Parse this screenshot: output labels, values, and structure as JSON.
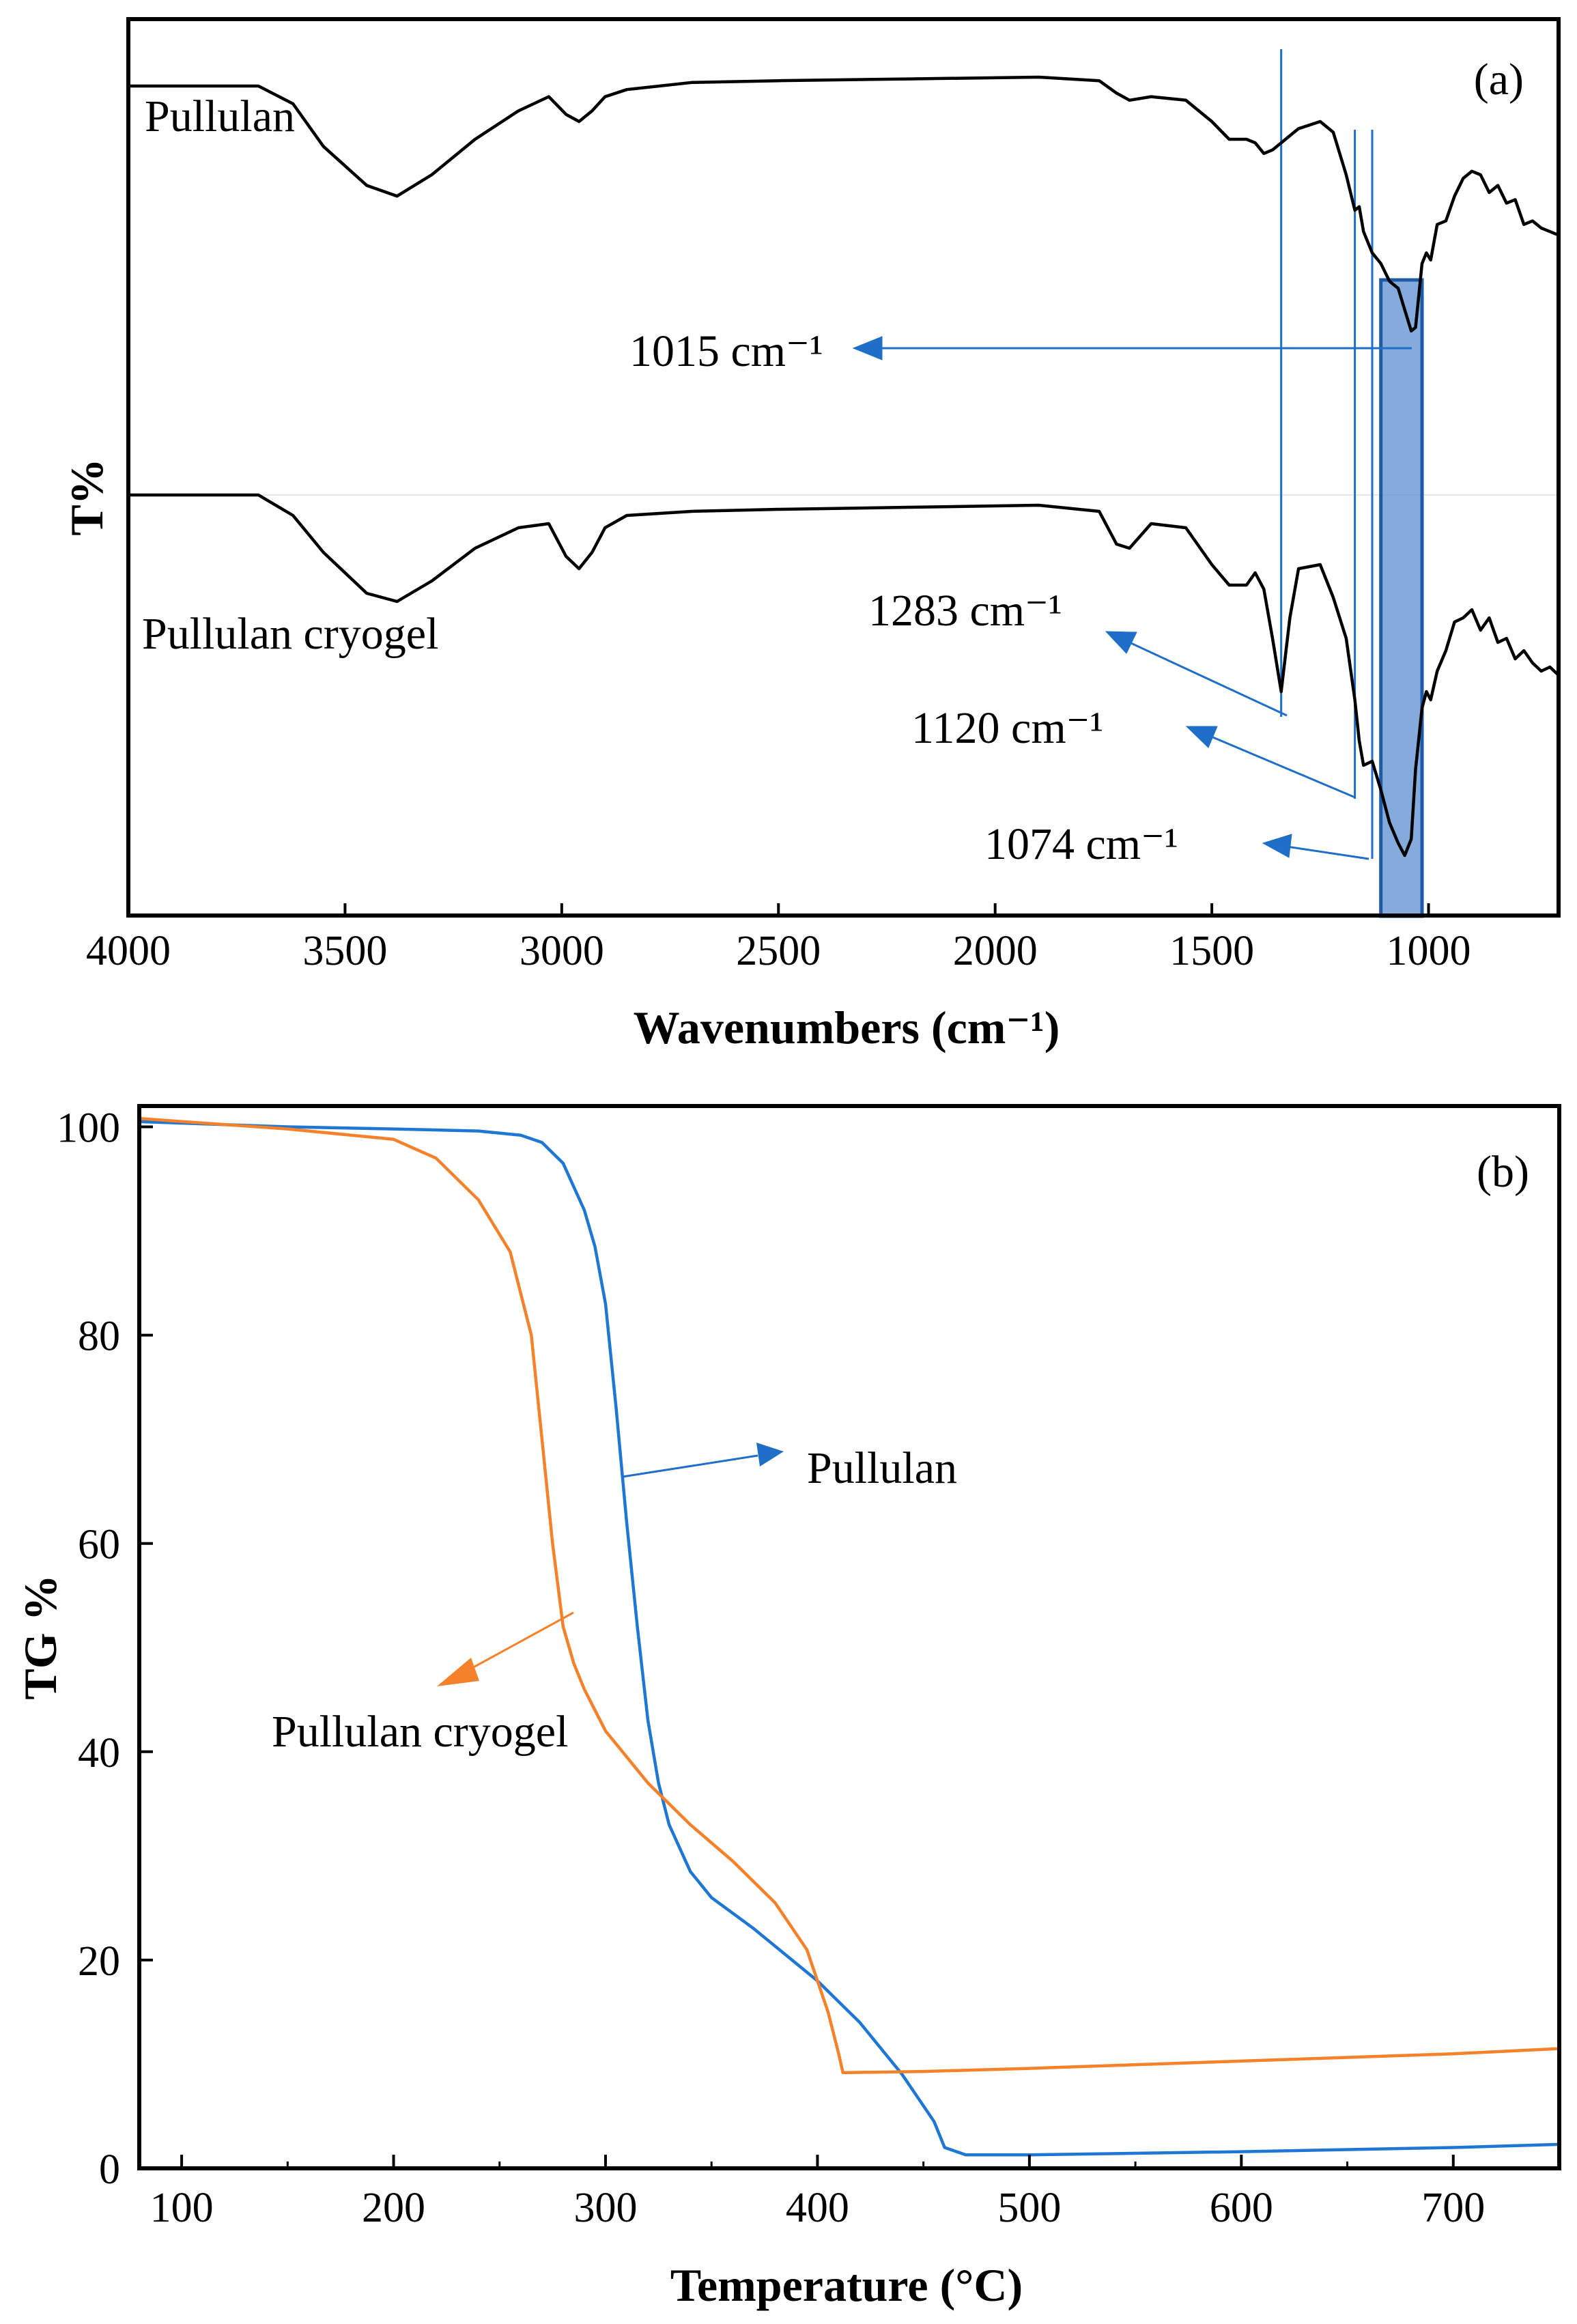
{
  "chart_data": [
    {
      "panel": "(a)",
      "type": "line",
      "xlabel": "Wavenumbers (cm⁻¹)",
      "ylabel": "T%",
      "xlim": [
        4000,
        700
      ],
      "x_reversed": true,
      "xticks": [
        "4000",
        "3500",
        "3000",
        "2500",
        "2000",
        "1500",
        "1000"
      ],
      "highlight_band": {
        "from": 1110,
        "to": 1015,
        "color": "#5b8fd0"
      },
      "marker_lines": [
        1340,
        1170,
        1130
      ],
      "series": [
        {
          "name": "Pullulan",
          "color": "#000000",
          "x": [
            4000,
            3700,
            3620,
            3550,
            3450,
            3380,
            3300,
            3200,
            3100,
            3030,
            2990,
            2960,
            2930,
            2900,
            2850,
            2700,
            2500,
            2200,
            1900,
            1760,
            1720,
            1690,
            1640,
            1560,
            1500,
            1460,
            1420,
            1400,
            1380,
            1360,
            1300,
            1250,
            1220,
            1190,
            1170,
            1160,
            1150,
            1130,
            1110,
            1090,
            1070,
            1055,
            1040,
            1030,
            1015,
            1005,
            995,
            980,
            960,
            940,
            920,
            900,
            880,
            860,
            840,
            820,
            800,
            780,
            760,
            740,
            720,
            700
          ],
          "values": [
            0.05,
            0.05,
            0.1,
            0.22,
            0.33,
            0.36,
            0.3,
            0.2,
            0.12,
            0.08,
            0.13,
            0.15,
            0.12,
            0.08,
            0.06,
            0.04,
            0.035,
            0.03,
            0.025,
            0.035,
            0.07,
            0.09,
            0.08,
            0.09,
            0.15,
            0.2,
            0.2,
            0.21,
            0.24,
            0.23,
            0.17,
            0.15,
            0.18,
            0.3,
            0.4,
            0.39,
            0.46,
            0.52,
            0.55,
            0.6,
            0.62,
            0.68,
            0.74,
            0.73,
            0.55,
            0.52,
            0.54,
            0.44,
            0.43,
            0.36,
            0.31,
            0.29,
            0.3,
            0.35,
            0.33,
            0.38,
            0.37,
            0.44,
            0.43,
            0.45,
            0.46,
            0.47
          ]
        },
        {
          "name": "Pullulan cryogel",
          "color": "#000000",
          "x": [
            4000,
            3700,
            3620,
            3550,
            3450,
            3380,
            3300,
            3200,
            3100,
            3030,
            2990,
            2960,
            2930,
            2900,
            2850,
            2700,
            2500,
            2200,
            1900,
            1760,
            1720,
            1690,
            1640,
            1560,
            1500,
            1460,
            1420,
            1400,
            1380,
            1360,
            1340,
            1320,
            1300,
            1250,
            1220,
            1190,
            1170,
            1160,
            1150,
            1130,
            1110,
            1090,
            1070,
            1055,
            1040,
            1030,
            1015,
            1005,
            995,
            980,
            960,
            940,
            920,
            900,
            880,
            860,
            840,
            820,
            800,
            780,
            760,
            740,
            720,
            700
          ],
          "values": [
            0.0,
            0.0,
            0.05,
            0.14,
            0.24,
            0.26,
            0.21,
            0.13,
            0.08,
            0.07,
            0.15,
            0.18,
            0.14,
            0.08,
            0.05,
            0.04,
            0.035,
            0.03,
            0.025,
            0.04,
            0.12,
            0.13,
            0.07,
            0.08,
            0.17,
            0.22,
            0.22,
            0.19,
            0.23,
            0.35,
            0.48,
            0.3,
            0.18,
            0.17,
            0.25,
            0.35,
            0.5,
            0.6,
            0.66,
            0.65,
            0.72,
            0.8,
            0.85,
            0.88,
            0.84,
            0.67,
            0.52,
            0.48,
            0.5,
            0.43,
            0.38,
            0.31,
            0.3,
            0.28,
            0.33,
            0.3,
            0.36,
            0.35,
            0.4,
            0.38,
            0.41,
            0.43,
            0.42,
            0.44
          ]
        }
      ],
      "labels": {
        "panel": "(a)",
        "pullulan": "Pullulan",
        "cryogel": "Pullulan cryogel",
        "band_1015": "1015 cm⁻¹",
        "band_1283": "1283 cm⁻¹",
        "band_1120": "1120 cm⁻¹",
        "band_1074": "1074 cm⁻¹"
      }
    },
    {
      "panel": "(b)",
      "type": "line",
      "xlabel": "Temperature (°C)",
      "ylabel": "TG %",
      "xlim": [
        80,
        750
      ],
      "ylim": [
        0,
        102
      ],
      "xticks": [
        100,
        200,
        300,
        400,
        500,
        600,
        700
      ],
      "yticks": [
        0,
        20,
        40,
        60,
        80,
        100
      ],
      "series": [
        {
          "name": "Pullulan",
          "color": "#1f77d4",
          "x": [
            80,
            150,
            200,
            240,
            260,
            270,
            280,
            290,
            295,
            300,
            305,
            310,
            315,
            320,
            325,
            330,
            340,
            350,
            370,
            400,
            420,
            440,
            455,
            460,
            470,
            500,
            600,
            700,
            750
          ],
          "values": [
            100.5,
            100.0,
            99.8,
            99.6,
            99.2,
            98.5,
            96.5,
            92.0,
            88.5,
            83.0,
            73.0,
            62.0,
            52.0,
            43.0,
            37.0,
            33.0,
            28.5,
            26.0,
            23.0,
            18.0,
            14.0,
            9.0,
            4.5,
            2.0,
            1.3,
            1.3,
            1.6,
            2.0,
            2.3
          ]
        },
        {
          "name": "Pullulan cryogel",
          "color": "#f5822a",
          "x": [
            80,
            150,
            200,
            220,
            240,
            255,
            265,
            270,
            275,
            280,
            285,
            290,
            300,
            320,
            340,
            360,
            380,
            395,
            405,
            410,
            412,
            415,
            450,
            500,
            600,
            700,
            750
          ],
          "values": [
            100.8,
            99.8,
            98.8,
            97.0,
            93.0,
            88.0,
            80.0,
            70.0,
            60.0,
            52.0,
            48.5,
            46.0,
            42.0,
            37.0,
            33.0,
            29.5,
            25.5,
            21.0,
            15.0,
            11.0,
            9.2,
            9.2,
            9.3,
            9.6,
            10.3,
            11.0,
            11.5
          ]
        }
      ],
      "labels": {
        "panel": "(b)",
        "pullulan": "Pullulan",
        "cryogel": "Pullulan cryogel"
      }
    }
  ],
  "colors": {
    "ftir_line": "#000000",
    "accent_blue": "#1f77d4",
    "accent_orange": "#f5822a",
    "band_fill": "#5b8fd0"
  }
}
